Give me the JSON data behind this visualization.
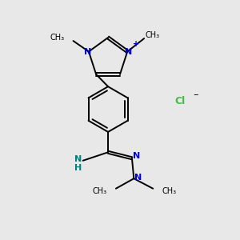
{
  "bg_color": "#e8e8e8",
  "bond_color": "#000000",
  "N_color": "#0000cc",
  "NH_color": "#008080",
  "Cl_color": "#44bb44",
  "line_width": 1.4,
  "figsize": [
    3.0,
    3.0
  ],
  "dpi": 100,
  "xlim": [
    0,
    10
  ],
  "ylim": [
    0,
    10
  ]
}
